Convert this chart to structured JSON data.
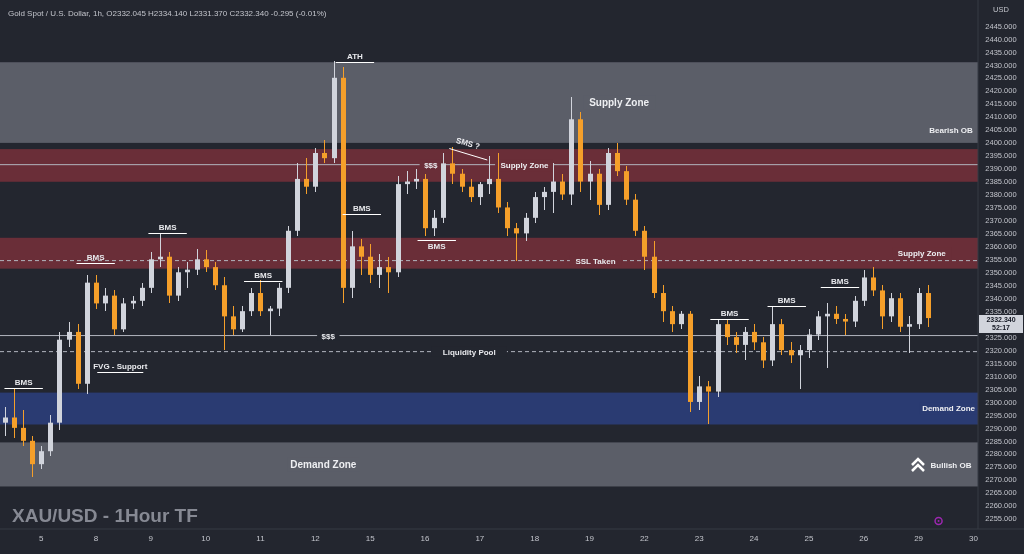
{
  "chart_data": {
    "type": "candlestick",
    "title": "XAU/USD - 1Hour TF",
    "subtitle": "Gold Spot / U.S. Dollar, 1h, O2332.045 H2334.140 L2331.370 C2332.340 -0.295 (-0.01%)",
    "ylabel": "USD",
    "categories": [
      null,
      null,
      null,
      null,
      "5",
      null,
      null,
      null,
      null,
      null,
      "8",
      null,
      null,
      null,
      null,
      null,
      "9",
      null,
      null,
      null,
      null,
      null,
      "10",
      null,
      null,
      null,
      null,
      null,
      "11",
      null,
      null,
      null,
      null,
      null,
      "12",
      null,
      null,
      null,
      null,
      null,
      "15",
      null,
      null,
      null,
      null,
      null,
      "16",
      null,
      null,
      null,
      null,
      null,
      "17",
      null,
      null,
      null,
      null,
      null,
      "18",
      null,
      null,
      null,
      null,
      null,
      "19",
      null,
      null,
      null,
      null,
      null,
      "22",
      null,
      null,
      null,
      null,
      null,
      "23",
      null,
      null,
      null,
      null,
      null,
      "24",
      null,
      null,
      null,
      null,
      null,
      "25",
      null,
      null,
      null,
      null,
      null,
      "26",
      null,
      null,
      null,
      null,
      null,
      "29",
      null,
      null,
      null,
      null,
      null,
      "30"
    ],
    "ohlc": [
      [
        2292,
        2298,
        2287,
        2294
      ],
      [
        2294,
        2305.5,
        2286,
        2290
      ],
      [
        2290,
        2297,
        2283,
        2285
      ],
      [
        2285,
        2287,
        2271,
        2276
      ],
      [
        2276,
        2283,
        2274,
        2281
      ],
      [
        2281,
        2295,
        2279,
        2292
      ],
      [
        2292,
        2327,
        2289,
        2324
      ],
      [
        2324,
        2331,
        2321,
        2327
      ],
      [
        2327,
        2330,
        2305,
        2307
      ],
      [
        2307,
        2349,
        2303,
        2346
      ],
      [
        2346,
        2349,
        2336,
        2338
      ],
      [
        2338,
        2344,
        2335,
        2341
      ],
      [
        2341,
        2343,
        2326,
        2328
      ],
      [
        2328,
        2340,
        2327,
        2338
      ],
      [
        2338,
        2341,
        2336,
        2339
      ],
      [
        2339,
        2346,
        2337,
        2344
      ],
      [
        2344,
        2358,
        2342,
        2355
      ],
      [
        2355,
        2365,
        2352,
        2356
      ],
      [
        2356,
        2358,
        2338,
        2341
      ],
      [
        2341,
        2352,
        2339,
        2350
      ],
      [
        2350,
        2354,
        2344,
        2351
      ],
      [
        2351,
        2359,
        2349,
        2355
      ],
      [
        2355,
        2358.5,
        2350,
        2352
      ],
      [
        2352,
        2354,
        2343,
        2345
      ],
      [
        2345,
        2348,
        2320,
        2333
      ],
      [
        2333,
        2337,
        2326,
        2328
      ],
      [
        2328,
        2337,
        2327,
        2335
      ],
      [
        2335,
        2344,
        2333,
        2342
      ],
      [
        2342,
        2347,
        2333,
        2335
      ],
      [
        2335,
        2337,
        2326,
        2336
      ],
      [
        2336,
        2346,
        2333,
        2344
      ],
      [
        2344,
        2368,
        2342,
        2366
      ],
      [
        2366,
        2392,
        2364,
        2386
      ],
      [
        2386,
        2394,
        2380,
        2383
      ],
      [
        2383,
        2398,
        2381,
        2396
      ],
      [
        2396,
        2401,
        2392,
        2394
      ],
      [
        2394,
        2431.3,
        2392,
        2425
      ],
      [
        2425,
        2429,
        2338,
        2344
      ],
      [
        2344,
        2366,
        2340,
        2360
      ],
      [
        2360,
        2363,
        2349,
        2356
      ],
      [
        2356,
        2361,
        2346,
        2349
      ],
      [
        2349,
        2357,
        2344,
        2352
      ],
      [
        2352,
        2356,
        2342,
        2350
      ],
      [
        2350,
        2387,
        2348,
        2384
      ],
      [
        2384,
        2389,
        2380,
        2385
      ],
      [
        2385,
        2390,
        2382,
        2386
      ],
      [
        2386,
        2388,
        2364,
        2367
      ],
      [
        2367,
        2374,
        2364,
        2371
      ],
      [
        2371,
        2396,
        2369,
        2392
      ],
      [
        2392,
        2398.2,
        2384,
        2388
      ],
      [
        2388,
        2390,
        2381,
        2383
      ],
      [
        2383,
        2386,
        2377,
        2379
      ],
      [
        2379,
        2385,
        2376,
        2384
      ],
      [
        2384,
        2395,
        2380,
        2386
      ],
      [
        2386,
        2396,
        2373,
        2375
      ],
      [
        2375,
        2377,
        2364,
        2367
      ],
      [
        2367,
        2369,
        2354.5,
        2365
      ],
      [
        2365,
        2373,
        2362,
        2371
      ],
      [
        2371,
        2381,
        2369,
        2379
      ],
      [
        2379,
        2383,
        2374,
        2381
      ],
      [
        2381,
        2392,
        2373,
        2385
      ],
      [
        2385,
        2388,
        2378,
        2380
      ],
      [
        2380,
        2417.5,
        2376,
        2409
      ],
      [
        2409,
        2412,
        2381,
        2385
      ],
      [
        2385,
        2393,
        2378,
        2388
      ],
      [
        2388,
        2390,
        2372,
        2376
      ],
      [
        2376,
        2398,
        2374,
        2396
      ],
      [
        2396,
        2400,
        2387,
        2389
      ],
      [
        2389,
        2391,
        2376,
        2378
      ],
      [
        2378,
        2380,
        2364,
        2366
      ],
      [
        2366,
        2368,
        2351,
        2356
      ],
      [
        2356,
        2362,
        2340,
        2342
      ],
      [
        2342,
        2345,
        2331,
        2335
      ],
      [
        2335,
        2337,
        2327,
        2330
      ],
      [
        2330,
        2335,
        2328,
        2334
      ],
      [
        2334,
        2335,
        2296,
        2300
      ],
      [
        2300,
        2310,
        2297,
        2306
      ],
      [
        2306,
        2308,
        2291.3,
        2304
      ],
      [
        2304,
        2332,
        2302,
        2330
      ],
      [
        2330,
        2332,
        2322,
        2325
      ],
      [
        2325,
        2327,
        2319,
        2322
      ],
      [
        2322,
        2329,
        2316,
        2327
      ],
      [
        2327,
        2330,
        2320,
        2323
      ],
      [
        2323,
        2325,
        2313,
        2316
      ],
      [
        2316,
        2337,
        2314,
        2330
      ],
      [
        2330,
        2332,
        2318,
        2320
      ],
      [
        2320,
        2323,
        2315,
        2318
      ],
      [
        2318,
        2322,
        2305,
        2320
      ],
      [
        2320,
        2328,
        2317,
        2326
      ],
      [
        2326,
        2335,
        2324,
        2333
      ],
      [
        2333,
        2338,
        2313,
        2334
      ],
      [
        2334,
        2337,
        2330,
        2332
      ],
      [
        2332,
        2334,
        2326,
        2331
      ],
      [
        2331,
        2341,
        2329,
        2339
      ],
      [
        2339,
        2351,
        2337,
        2348
      ],
      [
        2348,
        2352,
        2341,
        2343
      ],
      [
        2343,
        2345,
        2328,
        2333
      ],
      [
        2333,
        2342,
        2331,
        2340
      ],
      [
        2340,
        2342,
        2327,
        2329
      ],
      [
        2329,
        2333,
        2319,
        2330
      ],
      [
        2330,
        2344,
        2328,
        2342
      ],
      [
        2342,
        2345,
        2329,
        2332.34
      ],
      null,
      null,
      null,
      null,
      null
    ],
    "colors": [
      "#d1d4dc",
      "#f59f2a",
      "#f59f2a",
      "#f59f2a",
      "#d1d4dc",
      "#d1d4dc",
      "#d1d4dc",
      "#d1d4dc",
      "#f59f2a",
      "#d1d4dc",
      "#f59f2a",
      "#d1d4dc",
      "#f59f2a",
      "#d1d4dc",
      "#d1d4dc",
      "#d1d4dc",
      "#d1d4dc",
      "#d1d4dc",
      "#f59f2a",
      "#d1d4dc",
      "#d1d4dc",
      "#d1d4dc",
      "#f59f2a",
      "#f59f2a",
      "#f59f2a",
      "#f59f2a",
      "#d1d4dc",
      "#d1d4dc",
      "#f59f2a",
      "#d1d4dc",
      "#d1d4dc",
      "#d1d4dc",
      "#d1d4dc",
      "#f59f2a",
      "#d1d4dc",
      "#f59f2a",
      "#d1d4dc",
      "#f59f2a",
      "#d1d4dc",
      "#f59f2a",
      "#f59f2a",
      "#d1d4dc",
      "#f59f2a",
      "#d1d4dc",
      "#d1d4dc",
      "#d1d4dc",
      "#f59f2a",
      "#d1d4dc",
      "#d1d4dc",
      "#f59f2a",
      "#f59f2a",
      "#f59f2a",
      "#d1d4dc",
      "#d1d4dc",
      "#f59f2a",
      "#f59f2a",
      "#f59f2a",
      "#d1d4dc",
      "#d1d4dc",
      "#d1d4dc",
      "#d1d4dc",
      "#f59f2a",
      "#d1d4dc",
      "#f59f2a",
      "#d1d4dc",
      "#f59f2a",
      "#d1d4dc",
      "#f59f2a",
      "#f59f2a",
      "#f59f2a",
      "#f59f2a",
      "#f59f2a",
      "#f59f2a",
      "#f59f2a",
      "#d1d4dc",
      "#f59f2a",
      "#d1d4dc",
      "#f59f2a",
      "#d1d4dc",
      "#f59f2a",
      "#f59f2a",
      "#d1d4dc",
      "#f59f2a",
      "#f59f2a",
      "#d1d4dc",
      "#f59f2a",
      "#f59f2a",
      "#d1d4dc",
      "#d1d4dc",
      "#d1d4dc",
      "#d1d4dc",
      "#f59f2a",
      "#f59f2a",
      "#d1d4dc",
      "#d1d4dc",
      "#f59f2a",
      "#f59f2a",
      "#d1d4dc",
      "#f59f2a",
      "#d1d4dc",
      "#d1d4dc",
      "#f59f2a",
      null,
      null,
      null,
      null,
      null
    ],
    "ylim": [
      2251,
      2455
    ],
    "yticks": [
      {
        "value": 2255,
        "label": "2255.000"
      },
      {
        "value": 2260,
        "label": "2260.000"
      },
      {
        "value": 2265,
        "label": "2265.000"
      },
      {
        "value": 2270,
        "label": "2270.000"
      },
      {
        "value": 2275,
        "label": "2275.000"
      },
      {
        "value": 2280,
        "label": "2280.000"
      },
      {
        "value": 2285,
        "label": "2285.000"
      },
      {
        "value": 2290,
        "label": "2290.000"
      },
      {
        "value": 2295,
        "label": "2295.000"
      },
      {
        "value": 2300,
        "label": "2300.000"
      },
      {
        "value": 2305,
        "label": "2305.000"
      },
      {
        "value": 2310,
        "label": "2310.000"
      },
      {
        "value": 2315,
        "label": "2315.000"
      },
      {
        "value": 2320,
        "label": "2320.000"
      },
      {
        "value": 2325,
        "label": "2325.000"
      },
      {
        "value": 2335,
        "label": "2335.000"
      },
      {
        "value": 2340,
        "label": "2340.000"
      },
      {
        "value": 2345,
        "label": "2345.000"
      },
      {
        "value": 2350,
        "label": "2350.000"
      },
      {
        "value": 2355,
        "label": "2355.000"
      },
      {
        "value": 2360,
        "label": "2360.000"
      },
      {
        "value": 2365,
        "label": "2365.000"
      },
      {
        "value": 2370,
        "label": "2370.000"
      },
      {
        "value": 2375,
        "label": "2375.000"
      },
      {
        "value": 2380,
        "label": "2380.000"
      },
      {
        "value": 2385,
        "label": "2385.000"
      },
      {
        "value": 2390,
        "label": "2390.000"
      },
      {
        "value": 2395,
        "label": "2395.000"
      },
      {
        "value": 2400,
        "label": "2400.000"
      },
      {
        "value": 2405,
        "label": "2405.000"
      },
      {
        "value": 2410,
        "label": "2410.000"
      },
      {
        "value": 2415,
        "label": "2415.000"
      },
      {
        "value": 2420,
        "label": "2420.000"
      },
      {
        "value": 2425,
        "label": "2425.000"
      },
      {
        "value": 2430,
        "label": "2430.000"
      },
      {
        "value": 2435,
        "label": "2435.000"
      },
      {
        "value": 2440,
        "label": "2440.000"
      },
      {
        "value": 2445,
        "label": "2445.000"
      }
    ],
    "bands": [
      {
        "axis": "y",
        "from": 2399.9,
        "to": 2431.0,
        "color": "#5b5e68",
        "label": "Supply Zone"
      },
      {
        "axis": "y",
        "from": 2384.9,
        "to": 2397.5,
        "color": "#6a2e38",
        "label": "Supply Zone"
      },
      {
        "axis": "y",
        "from": 2351.4,
        "to": 2363.3,
        "color": "#6a2e38",
        "label": "Supply Zone"
      },
      {
        "axis": "y",
        "from": 2291.3,
        "to": 2303.6,
        "color": "#2a3b72",
        "label": "Demand Zone"
      },
      {
        "axis": "y",
        "from": 2267.4,
        "to": 2284.4,
        "color": "#5b5e68",
        "label": "Demand Zone"
      }
    ],
    "ref_lines": [
      {
        "axis": "y",
        "value": 2319.4,
        "color": "#b2b5be",
        "line_style": "dashed",
        "label": "Liquidity Pool"
      },
      {
        "axis": "y",
        "value": 2354.5,
        "color": "#b2b5be",
        "line_style": "dashed",
        "label": "SSL Taken"
      },
      {
        "axis": "y",
        "value": 2325.6,
        "color": "#b2b5be",
        "line_style": "solid",
        "label": "$$$"
      },
      {
        "axis": "y",
        "value": 2391.5,
        "color": "#b2b5be",
        "line_style": "solid",
        "label": "$$$"
      }
    ],
    "annotations": [
      "BMS",
      "BMS",
      "BMS",
      "BMS",
      "BMS",
      "BMS",
      "BMS",
      "BMS",
      "BMS",
      "SMS ?",
      "ATH",
      "FVG - Support",
      "Bearish OB",
      "Bullish OB",
      "2332.340\n52:17"
    ]
  }
}
